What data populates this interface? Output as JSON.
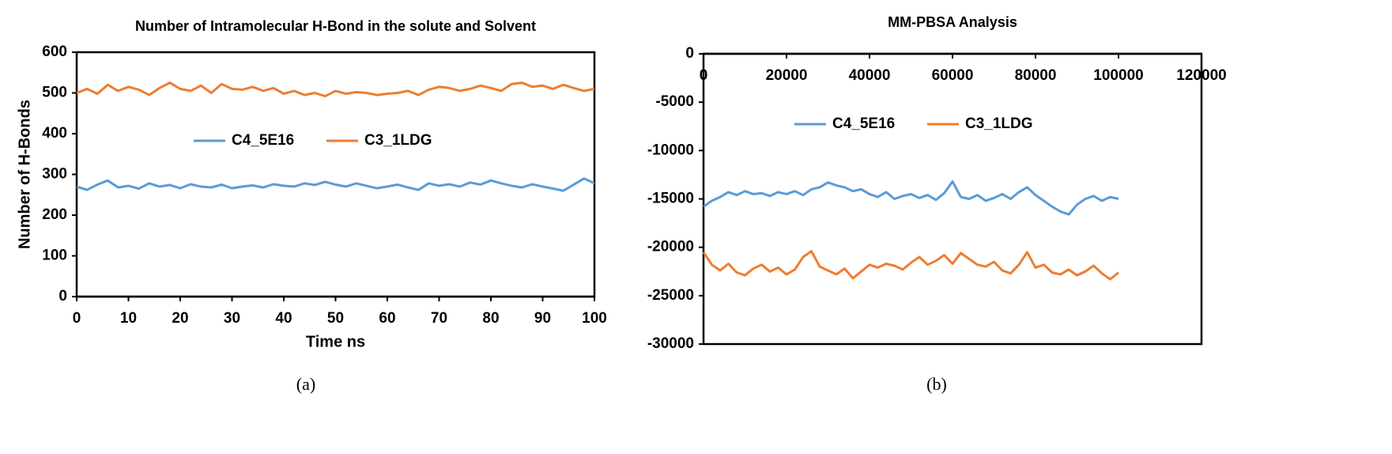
{
  "chart_data": [
    {
      "type": "line",
      "title": "Number of Intramolecular H-Bond in the solute and Solvent",
      "xlabel": "Time ns",
      "ylabel": "Number of H-Bonds",
      "caption": "(a)",
      "x": [
        0,
        2,
        4,
        6,
        8,
        10,
        12,
        14,
        16,
        18,
        20,
        22,
        24,
        26,
        28,
        30,
        32,
        34,
        36,
        38,
        40,
        42,
        44,
        46,
        48,
        50,
        52,
        54,
        56,
        58,
        60,
        62,
        64,
        66,
        68,
        70,
        72,
        74,
        76,
        78,
        80,
        82,
        84,
        86,
        88,
        90,
        92,
        94,
        96,
        98,
        100
      ],
      "series": [
        {
          "name": "C4_5E16",
          "color": "#5b9bd5",
          "values": [
            270,
            262,
            275,
            285,
            268,
            272,
            265,
            278,
            270,
            274,
            266,
            276,
            270,
            268,
            275,
            266,
            270,
            273,
            268,
            276,
            272,
            270,
            278,
            274,
            282,
            275,
            270,
            278,
            272,
            266,
            270,
            275,
            268,
            262,
            278,
            272,
            276,
            270,
            280,
            275,
            285,
            278,
            272,
            268,
            276,
            270,
            265,
            260,
            275,
            290,
            278
          ]
        },
        {
          "name": "C3_1LDG",
          "color": "#ed7d31",
          "values": [
            500,
            510,
            498,
            520,
            505,
            515,
            508,
            495,
            512,
            525,
            510,
            505,
            518,
            500,
            522,
            510,
            508,
            515,
            505,
            512,
            498,
            505,
            495,
            500,
            492,
            505,
            498,
            502,
            500,
            495,
            498,
            500,
            505,
            495,
            508,
            515,
            512,
            505,
            510,
            518,
            512,
            505,
            522,
            525,
            515,
            518,
            510,
            520,
            512,
            505,
            510
          ]
        }
      ],
      "xlim": [
        0,
        100
      ],
      "xticks": [
        0,
        10,
        20,
        30,
        40,
        50,
        60,
        70,
        80,
        90,
        100
      ],
      "ylim": [
        0,
        600
      ],
      "yticks": [
        0,
        100,
        200,
        300,
        400,
        500,
        600
      ],
      "legend": "upper center",
      "grid": false
    },
    {
      "type": "line",
      "title": "MM-PBSA Analysis",
      "caption": "(b)",
      "x": [
        0,
        2000,
        4000,
        6000,
        8000,
        10000,
        12000,
        14000,
        16000,
        18000,
        20000,
        22000,
        24000,
        26000,
        28000,
        30000,
        32000,
        34000,
        36000,
        38000,
        40000,
        42000,
        44000,
        46000,
        48000,
        50000,
        52000,
        54000,
        56000,
        58000,
        60000,
        62000,
        64000,
        66000,
        68000,
        70000,
        72000,
        74000,
        76000,
        78000,
        80000,
        82000,
        84000,
        86000,
        88000,
        90000,
        92000,
        94000,
        96000,
        98000,
        100000
      ],
      "series": [
        {
          "name": "C4_5E16",
          "color": "#5b9bd5",
          "values": [
            -15800,
            -15200,
            -14800,
            -14300,
            -14600,
            -14200,
            -14500,
            -14400,
            -14700,
            -14300,
            -14500,
            -14200,
            -14600,
            -14000,
            -13800,
            -13300,
            -13600,
            -13800,
            -14200,
            -14000,
            -14500,
            -14800,
            -14300,
            -15000,
            -14700,
            -14500,
            -14900,
            -14600,
            -15100,
            -14400,
            -13200,
            -14800,
            -15000,
            -14600,
            -15200,
            -14900,
            -14500,
            -15000,
            -14300,
            -13800,
            -14600,
            -15200,
            -15800,
            -16300,
            -16600,
            -15600,
            -15000,
            -14700,
            -15200,
            -14800,
            -15000
          ]
        },
        {
          "name": "C3_1LDG",
          "color": "#ed7d31",
          "values": [
            -20500,
            -21800,
            -22400,
            -21700,
            -22600,
            -22900,
            -22200,
            -21800,
            -22500,
            -22100,
            -22800,
            -22300,
            -21000,
            -20400,
            -22000,
            -22400,
            -22800,
            -22200,
            -23200,
            -22500,
            -21800,
            -22100,
            -21700,
            -21900,
            -22300,
            -21600,
            -21000,
            -21800,
            -21400,
            -20800,
            -21700,
            -20600,
            -21200,
            -21800,
            -22000,
            -21500,
            -22400,
            -22700,
            -21800,
            -20500,
            -22100,
            -21800,
            -22600,
            -22800,
            -22300,
            -22900,
            -22500,
            -21900,
            -22700,
            -23300,
            -22600
          ]
        }
      ],
      "xlim": [
        0,
        120000
      ],
      "xticks": [
        0,
        20000,
        40000,
        60000,
        80000,
        100000,
        120000
      ],
      "ylim": [
        -30000,
        0
      ],
      "yticks": [
        0,
        -5000,
        -10000,
        -15000,
        -20000,
        -25000,
        -30000
      ],
      "legend": "upper center",
      "grid": false
    }
  ]
}
